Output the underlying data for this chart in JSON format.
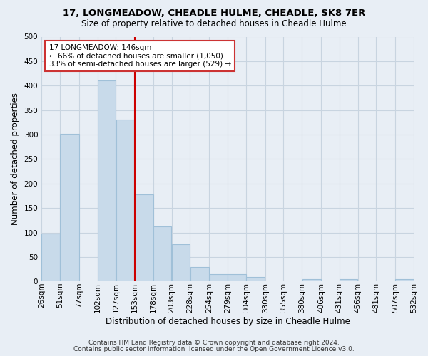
{
  "title": "17, LONGMEADOW, CHEADLE HULME, CHEADLE, SK8 7ER",
  "subtitle": "Size of property relative to detached houses in Cheadle Hulme",
  "xlabel": "Distribution of detached houses by size in Cheadle Hulme",
  "ylabel": "Number of detached properties",
  "bar_color": "#c8daea",
  "bar_edge_color": "#a0c0d8",
  "bin_edges": [
    26,
    51,
    77,
    102,
    127,
    153,
    178,
    203,
    228,
    254,
    279,
    304,
    330,
    355,
    380,
    406,
    431,
    456,
    481,
    507,
    532
  ],
  "bin_labels": [
    "26sqm",
    "51sqm",
    "77sqm",
    "102sqm",
    "127sqm",
    "153sqm",
    "178sqm",
    "203sqm",
    "228sqm",
    "254sqm",
    "279sqm",
    "304sqm",
    "330sqm",
    "355sqm",
    "380sqm",
    "406sqm",
    "431sqm",
    "456sqm",
    "481sqm",
    "507sqm",
    "532sqm"
  ],
  "bar_heights": [
    98,
    302,
    0,
    410,
    330,
    178,
    112,
    76,
    29,
    15,
    15,
    9,
    0,
    0,
    5,
    0,
    5,
    0,
    0,
    5
  ],
  "ylim": [
    0,
    500
  ],
  "yticks": [
    0,
    50,
    100,
    150,
    200,
    250,
    300,
    350,
    400,
    450,
    500
  ],
  "vline_x": 153,
  "vline_color": "#cc0000",
  "ann_title": "17 LONGMEADOW: 146sqm",
  "ann_line1": "← 66% of detached houses are smaller (1,050)",
  "ann_line2": "33% of semi-detached houses are larger (529) →",
  "ann_box_color": "#ffffff",
  "ann_box_edge": "#cc3333",
  "footer1": "Contains HM Land Registry data © Crown copyright and database right 2024.",
  "footer2": "Contains public sector information licensed under the Open Government Licence v3.0.",
  "background_color": "#e8eef5",
  "grid_color": "#c8d4e0",
  "title_fontsize": 9.5,
  "subtitle_fontsize": 8.5,
  "axis_label_fontsize": 8.5,
  "tick_fontsize": 7.5,
  "footer_fontsize": 6.5
}
